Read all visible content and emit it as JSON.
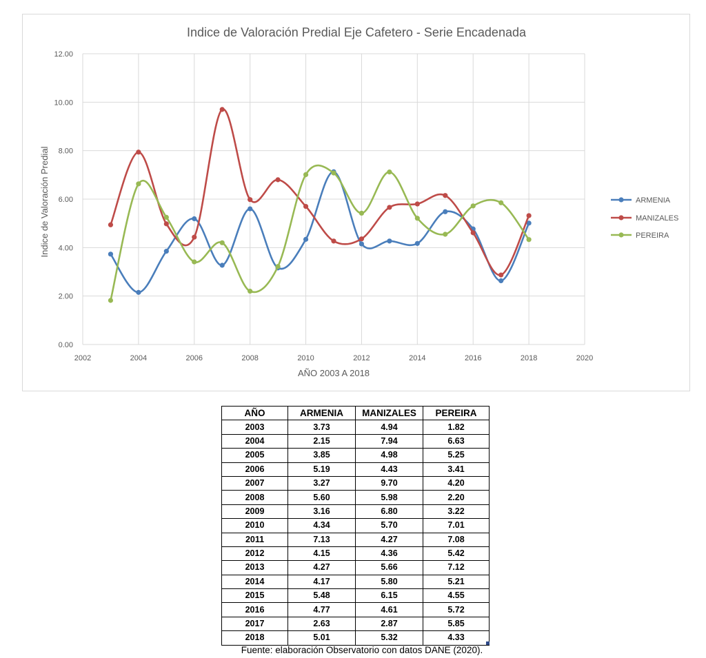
{
  "chart_data": {
    "type": "line",
    "title": "Indice de Valoración Predial Eje Cafetero - Serie Encadenada",
    "xlabel": "AÑO 2003 A 2018",
    "ylabel": "Indice de Valoración Predial",
    "xlim": [
      2002,
      2020
    ],
    "ylim": [
      0,
      12
    ],
    "x_ticks": [
      "2002",
      "2004",
      "2006",
      "2008",
      "2010",
      "2012",
      "2014",
      "2016",
      "2018",
      "2020"
    ],
    "y_ticks": [
      "0.00",
      "2.00",
      "4.00",
      "6.00",
      "8.00",
      "10.00",
      "12.00"
    ],
    "grid": "horizontal and vertical",
    "legend_position": "right",
    "x": [
      2003,
      2004,
      2005,
      2006,
      2007,
      2008,
      2009,
      2010,
      2011,
      2012,
      2013,
      2014,
      2015,
      2016,
      2017,
      2018
    ],
    "series": [
      {
        "name": "ARMENIA",
        "color": "#4a7ebb",
        "values": [
          3.73,
          2.15,
          3.85,
          5.19,
          3.27,
          5.6,
          3.16,
          4.34,
          7.13,
          4.15,
          4.27,
          4.17,
          5.48,
          4.77,
          2.63,
          5.01
        ]
      },
      {
        "name": "MANIZALES",
        "color": "#be4b48",
        "values": [
          4.94,
          7.94,
          4.98,
          4.43,
          9.7,
          5.98,
          6.8,
          5.7,
          4.27,
          4.36,
          5.66,
          5.8,
          6.15,
          4.61,
          2.87,
          5.32
        ]
      },
      {
        "name": "PEREIRA",
        "color": "#98b954",
        "values": [
          1.82,
          6.63,
          5.25,
          3.41,
          4.2,
          2.2,
          3.22,
          7.01,
          7.08,
          5.42,
          7.12,
          5.21,
          4.55,
          5.72,
          5.85,
          4.33
        ]
      }
    ]
  },
  "table": {
    "headers": [
      "AÑO",
      "ARMENIA",
      "MANIZALES",
      "PEREIRA"
    ],
    "rows": [
      [
        "2003",
        "3.73",
        "4.94",
        "1.82"
      ],
      [
        "2004",
        "2.15",
        "7.94",
        "6.63"
      ],
      [
        "2005",
        "3.85",
        "4.98",
        "5.25"
      ],
      [
        "2006",
        "5.19",
        "4.43",
        "3.41"
      ],
      [
        "2007",
        "3.27",
        "9.70",
        "4.20"
      ],
      [
        "2008",
        "5.60",
        "5.98",
        "2.20"
      ],
      [
        "2009",
        "3.16",
        "6.80",
        "3.22"
      ],
      [
        "2010",
        "4.34",
        "5.70",
        "7.01"
      ],
      [
        "2011",
        "7.13",
        "4.27",
        "7.08"
      ],
      [
        "2012",
        "4.15",
        "4.36",
        "5.42"
      ],
      [
        "2013",
        "4.27",
        "5.66",
        "7.12"
      ],
      [
        "2014",
        "4.17",
        "5.80",
        "5.21"
      ],
      [
        "2015",
        "5.48",
        "6.15",
        "4.55"
      ],
      [
        "2016",
        "4.77",
        "4.61",
        "5.72"
      ],
      [
        "2017",
        "2.63",
        "2.87",
        "5.85"
      ],
      [
        "2018",
        "5.01",
        "5.32",
        "4.33"
      ]
    ]
  },
  "source_note": "Fuente: elaboración Observatorio con datos DANE (2020).",
  "colors": {
    "grid": "#d9d9d9",
    "axis_text": "#595959",
    "title_text": "#595959",
    "table_border": "#000000"
  }
}
